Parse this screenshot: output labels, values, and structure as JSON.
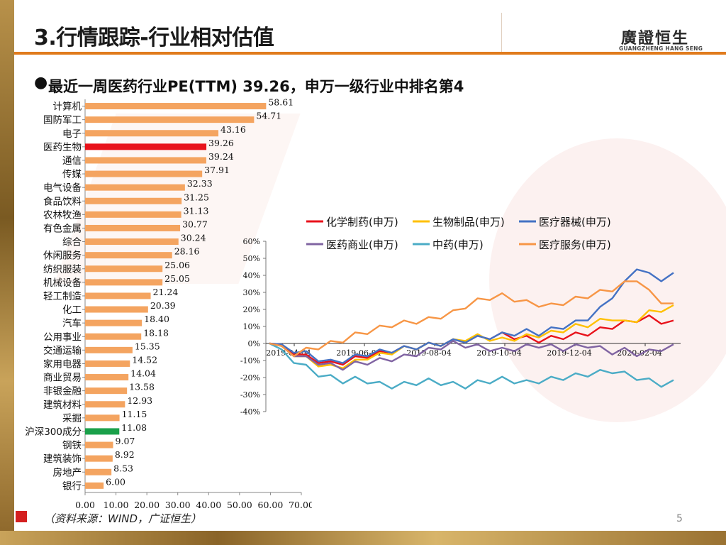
{
  "header": {
    "title": "3.行情跟踪-行业相对估值",
    "logo_cn": "廣證恒生",
    "logo_en": "GUANGZHENG HANG SENG"
  },
  "subtitle": "最近一周医药行业PE(TTM) 39.26，申万一级行业中排名第4",
  "footer": {
    "source": "（资料来源：WIND，广证恒生）",
    "page": "5"
  },
  "colors": {
    "bar_default": "#f4a460",
    "bar_pharma": "#e8121b",
    "bar_index": "#1aa04a",
    "accent": "#e07b1d"
  },
  "chart_data": [
    {
      "type": "bar",
      "orientation": "horizontal",
      "categories": [
        "计算机",
        "国防军工",
        "电子",
        "医药生物",
        "通信",
        "传媒",
        "电气设备",
        "食品饮料",
        "农林牧渔",
        "有色金属",
        "综合",
        "休闲服务",
        "纺织服装",
        "机械设备",
        "轻工制造",
        "化工",
        "汽车",
        "公用事业",
        "交通运输",
        "家用电器",
        "商业贸易",
        "非银金融",
        "建筑材料",
        "采掘",
        "沪深300成分",
        "钢铁",
        "建筑装饰",
        "房地产",
        "银行"
      ],
      "values": [
        58.61,
        54.71,
        43.16,
        39.26,
        39.24,
        37.91,
        32.33,
        31.25,
        31.13,
        30.77,
        30.24,
        28.16,
        25.06,
        25.05,
        21.24,
        20.39,
        18.4,
        18.18,
        15.35,
        14.52,
        14.04,
        13.58,
        12.93,
        11.15,
        11.08,
        9.07,
        8.92,
        8.53,
        6.0
      ],
      "labels": [
        "58.61",
        "54.71",
        "43.16",
        "39.26",
        "39.24",
        "37.91",
        "32.33",
        "31.25",
        "31.13",
        "30.77",
        "30.24",
        "28.16",
        "25.06",
        "25.05",
        "21.24",
        "20.39",
        "18.40",
        "18.18",
        "15.35",
        "14.52",
        "14.04",
        "13.58",
        "12.93",
        "11.15",
        "11.08",
        "9.07",
        "8.92",
        "8.53",
        "6.00"
      ],
      "highlight": {
        "医药生物": "pharma",
        "沪深300成分": "index"
      },
      "xlim": [
        0,
        70
      ],
      "xticks": [
        "0.00",
        "10.00",
        "20.00",
        "30.00",
        "40.00",
        "50.00",
        "60.00",
        "70.00"
      ]
    },
    {
      "type": "line",
      "x_ticks": [
        "2019-04-04",
        "2019-06-04",
        "2019-08-04",
        "2019-10-04",
        "2019-12-04",
        "2020-02-04"
      ],
      "ylim": [
        -40,
        60
      ],
      "y_ticks": [
        "60%",
        "50%",
        "40%",
        "30%",
        "20%",
        "10%",
        "0%",
        "-10%",
        "-20%",
        "-30%",
        "-40%"
      ],
      "legend": [
        "化学制药(申万)",
        "生物制品(申万)",
        "医疗器械(申万)",
        "医药商业(申万)",
        "中药(申万)",
        "医疗服务(申万)"
      ],
      "series": [
        {
          "name": "化学制药(申万)",
          "color": "#e8121b",
          "values": [
            0,
            -2,
            -5,
            -8,
            -10,
            -12,
            -11,
            -9,
            -7,
            -6,
            -4,
            -3,
            -2,
            -1,
            0,
            1,
            2,
            3,
            4,
            5,
            4,
            3,
            2,
            3,
            4,
            5,
            6,
            8,
            10,
            12,
            14,
            15,
            13,
            12
          ]
        },
        {
          "name": "生物制品(申万)",
          "color": "#ffc000",
          "values": [
            0,
            -3,
            -6,
            -9,
            -12,
            -14,
            -13,
            -11,
            -8,
            -7,
            -5,
            -3,
            -2,
            -1,
            0,
            1,
            3,
            4,
            3,
            2,
            3,
            4,
            5,
            6,
            8,
            10,
            11,
            13,
            15,
            12,
            14,
            18,
            20,
            21
          ]
        },
        {
          "name": "医疗器械(申万)",
          "color": "#4472c4",
          "values": [
            0,
            -2,
            -4,
            -6,
            -9,
            -11,
            -10,
            -8,
            -6,
            -5,
            -4,
            -3,
            -2,
            -1,
            0,
            1,
            2,
            3,
            4,
            5,
            6,
            7,
            6,
            8,
            10,
            12,
            15,
            20,
            28,
            35,
            45,
            40,
            38,
            40
          ]
        },
        {
          "name": "医药商业(申万)",
          "color": "#8064a2",
          "values": [
            0,
            -3,
            -6,
            -9,
            -11,
            -13,
            -14,
            -12,
            -11,
            -10,
            -9,
            -8,
            -6,
            -4,
            -2,
            0,
            -1,
            -2,
            -3,
            -4,
            -3,
            -2,
            -1,
            -2,
            -3,
            -2,
            -1,
            -3,
            -5,
            -4,
            -6,
            -5,
            -3,
            -2
          ]
        },
        {
          "name": "中药(申万)",
          "color": "#4bacc6",
          "values": [
            0,
            -5,
            -10,
            -14,
            -18,
            -20,
            -22,
            -21,
            -22,
            -24,
            -25,
            -24,
            -23,
            -22,
            -23,
            -24,
            -25,
            -23,
            -22,
            -21,
            -22,
            -23,
            -22,
            -21,
            -20,
            -19,
            -18,
            -17,
            -16,
            -18,
            -20,
            -22,
            -24,
            -23
          ]
        },
        {
          "name": "医疗服务(申万)",
          "color": "#f79646",
          "values": [
            0,
            -3,
            -6,
            -4,
            -2,
            0,
            2,
            5,
            7,
            9,
            11,
            12,
            13,
            14,
            16,
            18,
            22,
            25,
            27,
            28,
            26,
            24,
            23,
            22,
            24,
            26,
            28,
            30,
            32,
            35,
            38,
            30,
            25,
            22
          ]
        }
      ]
    }
  ]
}
